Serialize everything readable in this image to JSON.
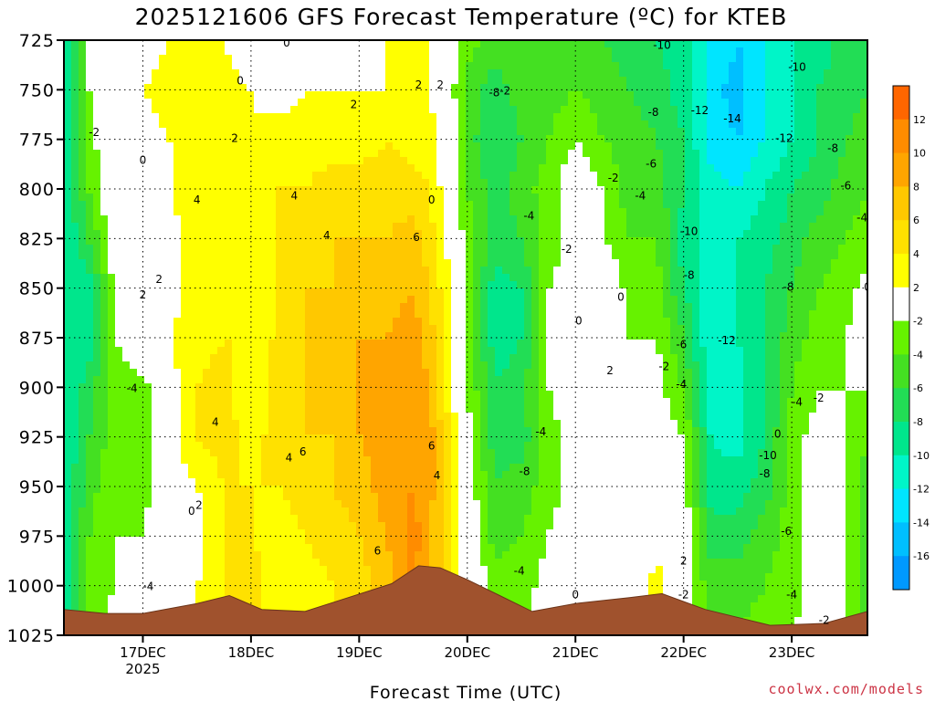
{
  "header": {
    "title": "2025121606 GFS Forecast Temperature (ºC) for KTEB"
  },
  "footer": {
    "credit": "coolwx.com/models"
  },
  "colors": {
    "terrain": "#a0522d",
    "credit": "#cc3344",
    "below_m16": "#0099ff",
    "m16_m14": "#00bfff",
    "m14_m12": "#00e5ff",
    "m12_m10": "#00f5c8",
    "m10_m8": "#00e68c",
    "m8_m6": "#22dd55",
    "m6_m4": "#44e022",
    "m4_m2": "#66f200",
    "m2_2": "#ffffff",
    "p2_4": "#ffff00",
    "p4_6": "#ffe100",
    "p6_8": "#ffc800",
    "p8_10": "#ffa500",
    "p10_12": "#ff8c00",
    "above_12": "#ff6600",
    "zero_line": "#b0187c"
  },
  "chart_data": {
    "type": "heatmap",
    "title": "2025121606 GFS Forecast Temperature (ºC) for KTEB",
    "xlabel": "Forecast Time (UTC)",
    "ylabel": "",
    "x_range_days_from_17dec00z": [
      -0.73,
      6.7
    ],
    "x_ticks": [
      {
        "label": "17DEC",
        "sublabel": "2025",
        "day": 0
      },
      {
        "label": "18DEC",
        "sublabel": "",
        "day": 1
      },
      {
        "label": "19DEC",
        "sublabel": "",
        "day": 2
      },
      {
        "label": "20DEC",
        "sublabel": "",
        "day": 3
      },
      {
        "label": "21DEC",
        "sublabel": "",
        "day": 4
      },
      {
        "label": "22DEC",
        "sublabel": "",
        "day": 5
      },
      {
        "label": "23DEC",
        "sublabel": "",
        "day": 6
      }
    ],
    "y_range_hpa": [
      725,
      1025
    ],
    "y_ticks": [
      "725",
      "750",
      "775",
      "800",
      "825",
      "850",
      "875",
      "900",
      "925",
      "950",
      "975",
      "1000",
      "1025"
    ],
    "y_tick_values": [
      725,
      750,
      775,
      800,
      825,
      850,
      875,
      900,
      925,
      950,
      975,
      1000,
      1025
    ],
    "colorbar": {
      "labels": [
        "12",
        "10",
        "8",
        "6",
        "4",
        "2",
        "-2",
        "-4",
        "-6",
        "-8",
        "-10",
        "-12",
        "-14",
        "-16"
      ],
      "boundaries": [
        12,
        10,
        8,
        6,
        4,
        2,
        -2,
        -4,
        -6,
        -8,
        -10,
        -12,
        -14,
        -16
      ]
    },
    "time_series": [
      {
        "day": -0.73,
        "t": [
          -10,
          -10,
          -10,
          -10,
          -10,
          -10,
          -10,
          -10,
          -10,
          -10,
          -10,
          -10,
          -10
        ]
      },
      {
        "day": -0.5,
        "t": [
          -2,
          -2,
          -3,
          -4,
          -6,
          -9,
          -9,
          -7,
          -6,
          -5,
          -4,
          -3,
          -3
        ]
      },
      {
        "day": -0.25,
        "t": [
          -1,
          0,
          1,
          1,
          0,
          -1,
          -2,
          -3,
          -3,
          -2,
          -2,
          -2,
          -1
        ]
      },
      {
        "day": 0.0,
        "t": [
          1,
          2,
          1,
          0,
          1,
          2,
          1,
          -3,
          -4,
          -3,
          -2,
          -1,
          0
        ]
      },
      {
        "day": 0.25,
        "t": [
          2,
          3,
          2,
          2,
          1,
          1,
          2,
          1,
          1,
          1,
          0,
          1,
          1
        ]
      },
      {
        "day": 0.5,
        "t": [
          3,
          4,
          3,
          4,
          3,
          3,
          3,
          4,
          4,
          2,
          1,
          2,
          2
        ]
      },
      {
        "day": 0.75,
        "t": [
          2,
          3,
          3,
          3,
          3,
          3,
          4,
          5,
          5,
          4,
          4,
          4,
          4
        ]
      },
      {
        "day": 1.0,
        "t": [
          0,
          2,
          2,
          3,
          3,
          3,
          4,
          2,
          3,
          4,
          4,
          5,
          5
        ]
      },
      {
        "day": 1.25,
        "t": [
          0,
          1,
          3,
          4,
          4,
          4,
          4,
          5,
          5,
          4,
          3,
          3,
          3
        ]
      },
      {
        "day": 1.5,
        "t": [
          1,
          2,
          3,
          4,
          5,
          6,
          6,
          6,
          6,
          5,
          4,
          3,
          3
        ]
      },
      {
        "day": 1.75,
        "t": [
          1,
          2,
          3,
          5,
          6,
          6,
          6,
          6,
          6,
          6,
          5,
          4,
          4
        ]
      },
      {
        "day": 2.0,
        "t": [
          1,
          2,
          3,
          5,
          6,
          7,
          8,
          8,
          8,
          7,
          6,
          5,
          5
        ]
      },
      {
        "day": 2.25,
        "t": [
          2,
          2,
          4,
          5,
          6,
          7,
          8,
          9,
          9,
          9,
          8,
          7,
          7
        ]
      },
      {
        "day": 2.5,
        "t": [
          2,
          3,
          3,
          5,
          7,
          8,
          9,
          9,
          10,
          10,
          11,
          11,
          11
        ]
      },
      {
        "day": 2.65,
        "t": [
          2,
          2,
          3,
          4,
          5,
          6,
          7,
          8,
          9,
          9,
          8,
          7,
          6
        ]
      },
      {
        "day": 2.8,
        "t": [
          0,
          0,
          1,
          1,
          2,
          3,
          3,
          4,
          5,
          5,
          6,
          5,
          5
        ]
      },
      {
        "day": 3.0,
        "t": [
          -3,
          -5,
          -5,
          -4,
          -3,
          -2,
          -2,
          -2,
          -1,
          0,
          0,
          1,
          1
        ]
      },
      {
        "day": 3.25,
        "t": [
          -5,
          -7,
          -8,
          -7,
          -7,
          -9,
          -9,
          -8,
          -7,
          -6,
          -5,
          -3,
          -2
        ]
      },
      {
        "day": 3.5,
        "t": [
          -4,
          -5,
          -6,
          -5,
          -6,
          -8,
          -8,
          -7,
          -7,
          -5,
          -4,
          -3,
          -2
        ]
      },
      {
        "day": 3.75,
        "t": [
          -4,
          -5,
          -4,
          -3,
          -3,
          -2,
          -1,
          -2,
          -3,
          -3,
          -2,
          -1,
          -1
        ]
      },
      {
        "day": 4.0,
        "t": [
          -5,
          -4,
          -2,
          0,
          -1,
          -1,
          0,
          0,
          -1,
          -1,
          0,
          0,
          1
        ]
      },
      {
        "day": 4.25,
        "t": [
          -6,
          -5,
          -4,
          -2,
          -2,
          1,
          1,
          2,
          2,
          1,
          0,
          0,
          0
        ]
      },
      {
        "day": 4.5,
        "t": [
          -7,
          -6,
          -5,
          -5,
          -4,
          -3,
          -2,
          -2,
          -2,
          -1,
          -1,
          0,
          0
        ]
      },
      {
        "day": 4.75,
        "t": [
          -8,
          -7,
          -6,
          -5,
          -4,
          -3,
          -2,
          -1,
          -1,
          0,
          1,
          3,
          3
        ]
      },
      {
        "day": 5.0,
        "t": [
          -9,
          -9,
          -8,
          -8,
          -9,
          -8,
          -6,
          -4,
          -2,
          -1,
          0,
          -1,
          -1
        ]
      },
      {
        "day": 5.25,
        "t": [
          -12,
          -13,
          -13,
          -11,
          -11,
          -11,
          -12,
          -11,
          -10,
          -9,
          -7,
          -5,
          -4
        ]
      },
      {
        "day": 5.5,
        "t": [
          -14,
          -15,
          -14,
          -12,
          -10,
          -10,
          -10,
          -11,
          -11,
          -9,
          -7,
          -5,
          -4
        ]
      },
      {
        "day": 5.75,
        "t": [
          -12,
          -12,
          -12,
          -10,
          -9,
          -8,
          -8,
          -8,
          -8,
          -7,
          -5,
          -4,
          -3
        ]
      },
      {
        "day": 6.0,
        "t": [
          -10,
          -10,
          -10,
          -8,
          -7,
          -6,
          -5,
          -4,
          -3,
          -3,
          -3,
          -3,
          -2
        ]
      },
      {
        "day": 6.25,
        "t": [
          -9,
          -8,
          -8,
          -7,
          -5,
          -4,
          -3,
          -2,
          -1,
          0,
          0,
          -1,
          -1
        ]
      },
      {
        "day": 6.5,
        "t": [
          -7,
          -7,
          -6,
          -5,
          -4,
          -3,
          -2,
          -2,
          -2,
          -2,
          -2,
          -2,
          -2
        ]
      },
      {
        "day": 6.7,
        "t": [
          -6,
          -6,
          -5,
          -4,
          -3,
          -1,
          -1,
          -2,
          -4,
          -5,
          -5,
          -5,
          -5
        ]
      }
    ],
    "terrain_surface_hpa": [
      {
        "day": -0.73,
        "p": 1012
      },
      {
        "day": -0.35,
        "p": 1014
      },
      {
        "day": 0.0,
        "p": 1014
      },
      {
        "day": 0.5,
        "p": 1009
      },
      {
        "day": 0.8,
        "p": 1005
      },
      {
        "day": 1.1,
        "p": 1012
      },
      {
        "day": 1.5,
        "p": 1013
      },
      {
        "day": 1.9,
        "p": 1006
      },
      {
        "day": 2.3,
        "p": 999
      },
      {
        "day": 2.55,
        "p": 990
      },
      {
        "day": 2.75,
        "p": 991
      },
      {
        "day": 3.0,
        "p": 997
      },
      {
        "day": 3.3,
        "p": 1005
      },
      {
        "day": 3.6,
        "p": 1013
      },
      {
        "day": 4.0,
        "p": 1009
      },
      {
        "day": 4.5,
        "p": 1006
      },
      {
        "day": 4.8,
        "p": 1004
      },
      {
        "day": 5.2,
        "p": 1012
      },
      {
        "day": 5.8,
        "p": 1020
      },
      {
        "day": 6.3,
        "p": 1019
      },
      {
        "day": 6.7,
        "p": 1013
      }
    ],
    "contour_labels": [
      {
        "text": "0",
        "day": 0.0,
        "p": 785
      },
      {
        "text": "0",
        "day": 0.9,
        "p": 745
      },
      {
        "text": "0",
        "day": 1.33,
        "p": 726
      },
      {
        "text": "0",
        "day": 2.67,
        "p": 805
      },
      {
        "text": "0",
        "day": 4.03,
        "p": 866
      },
      {
        "text": "0",
        "day": 4.42,
        "p": 854
      },
      {
        "text": "0",
        "day": 4.0,
        "p": 1004
      },
      {
        "text": "0",
        "day": 5.87,
        "p": 923
      },
      {
        "text": "0",
        "day": 6.7,
        "p": 849
      },
      {
        "text": "0",
        "day": 0.45,
        "p": 962
      },
      {
        "text": "2",
        "day": 0.0,
        "p": 853
      },
      {
        "text": "2",
        "day": 0.15,
        "p": 845
      },
      {
        "text": "2",
        "day": 0.85,
        "p": 774
      },
      {
        "text": "2",
        "day": 1.95,
        "p": 757
      },
      {
        "text": "2",
        "day": 2.55,
        "p": 747
      },
      {
        "text": "2",
        "day": 2.75,
        "p": 747
      },
      {
        "text": "2",
        "day": 4.32,
        "p": 891
      },
      {
        "text": "2",
        "day": 0.52,
        "p": 959
      },
      {
        "text": "2",
        "day": 5.0,
        "p": 987
      },
      {
        "text": "4",
        "day": 0.5,
        "p": 805
      },
      {
        "text": "4",
        "day": 0.67,
        "p": 917
      },
      {
        "text": "4",
        "day": 1.4,
        "p": 803
      },
      {
        "text": "4",
        "day": 1.7,
        "p": 823
      },
      {
        "text": "4",
        "day": 1.35,
        "p": 935
      },
      {
        "text": "4",
        "day": 2.72,
        "p": 944
      },
      {
        "text": "6",
        "day": 1.48,
        "p": 932
      },
      {
        "text": "6",
        "day": 2.53,
        "p": 824
      },
      {
        "text": "6",
        "day": 2.67,
        "p": 929
      },
      {
        "text": "6",
        "day": 2.17,
        "p": 982
      },
      {
        "text": "-2",
        "day": -0.45,
        "p": 771
      },
      {
        "text": "-2",
        "day": 3.35,
        "p": 750
      },
      {
        "text": "-2",
        "day": 3.92,
        "p": 830
      },
      {
        "text": "-2",
        "day": 4.35,
        "p": 794
      },
      {
        "text": "-2",
        "day": 4.82,
        "p": 889
      },
      {
        "text": "-2",
        "day": 5.0,
        "p": 1004
      },
      {
        "text": "-2",
        "day": 6.25,
        "p": 905
      },
      {
        "text": "-2",
        "day": 6.3,
        "p": 1017
      },
      {
        "text": "-4",
        "day": -0.1,
        "p": 900
      },
      {
        "text": "-4",
        "day": 0.05,
        "p": 1000
      },
      {
        "text": "-4",
        "day": 3.57,
        "p": 813
      },
      {
        "text": "-4",
        "day": 3.68,
        "p": 922
      },
      {
        "text": "-4",
        "day": 3.48,
        "p": 992
      },
      {
        "text": "-4",
        "day": 4.6,
        "p": 803
      },
      {
        "text": "-4",
        "day": 4.98,
        "p": 898
      },
      {
        "text": "-4",
        "day": 6.0,
        "p": 1004
      },
      {
        "text": "-4",
        "day": 6.05,
        "p": 907
      },
      {
        "text": "-4",
        "day": 6.65,
        "p": 814
      },
      {
        "text": "-6",
        "day": 4.7,
        "p": 787
      },
      {
        "text": "-6",
        "day": 4.98,
        "p": 878
      },
      {
        "text": "-6",
        "day": 5.95,
        "p": 972
      },
      {
        "text": "-6",
        "day": 6.5,
        "p": 798
      },
      {
        "text": "-8",
        "day": 3.25,
        "p": 751
      },
      {
        "text": "-8",
        "day": 3.53,
        "p": 942
      },
      {
        "text": "-8",
        "day": 4.72,
        "p": 761
      },
      {
        "text": "-8",
        "day": 5.05,
        "p": 843
      },
      {
        "text": "-8",
        "day": 5.75,
        "p": 943
      },
      {
        "text": "-8",
        "day": 5.97,
        "p": 849
      },
      {
        "text": "-8",
        "day": 6.38,
        "p": 779
      },
      {
        "text": "-10",
        "day": 4.8,
        "p": 727
      },
      {
        "text": "-10",
        "day": 5.05,
        "p": 821
      },
      {
        "text": "-10",
        "day": 5.78,
        "p": 934
      },
      {
        "text": "-10",
        "day": 6.05,
        "p": 738
      },
      {
        "text": "-12",
        "day": 5.15,
        "p": 760
      },
      {
        "text": "-12",
        "day": 5.4,
        "p": 876
      },
      {
        "text": "-12",
        "day": 5.93,
        "p": 774
      },
      {
        "text": "-14",
        "day": 5.45,
        "p": 764
      }
    ]
  }
}
